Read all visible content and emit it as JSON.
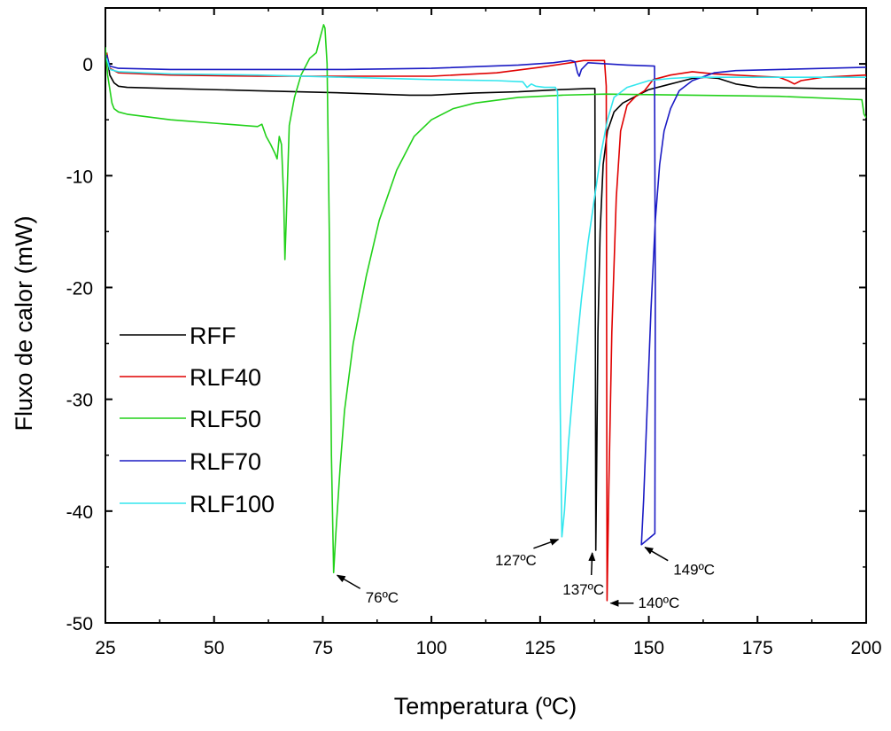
{
  "chart_data": {
    "type": "line",
    "xlabel": "Temperatura (ºC)",
    "ylabel": "Fluxo de calor (mW)",
    "xlim": [
      25,
      200
    ],
    "ylim": [
      -50,
      5
    ],
    "xticks": [
      "25",
      "50",
      "75",
      "100",
      "125",
      "150",
      "175",
      "200"
    ],
    "yticks": [
      "0",
      "-10",
      "-20",
      "-30",
      "-40",
      "-50"
    ],
    "legend_position": "middle-left",
    "grid": false,
    "series": [
      {
        "name": "RFF",
        "color": "#000000",
        "points": [
          [
            25.3,
            1.0
          ],
          [
            26,
            -1.0
          ],
          [
            27,
            -1.7
          ],
          [
            28,
            -2.0
          ],
          [
            30,
            -2.1
          ],
          [
            40,
            -2.2
          ],
          [
            60,
            -2.4
          ],
          [
            80,
            -2.6
          ],
          [
            95,
            -2.8
          ],
          [
            100,
            -2.8
          ],
          [
            110,
            -2.6
          ],
          [
            120,
            -2.5
          ],
          [
            130,
            -2.3
          ],
          [
            136,
            -2.2
          ],
          [
            137.6,
            -2.2
          ],
          [
            137.8,
            -43.5
          ],
          [
            138.0,
            -36
          ],
          [
            138.3,
            -24
          ],
          [
            138.8,
            -15
          ],
          [
            139.5,
            -9
          ],
          [
            140.5,
            -6
          ],
          [
            142,
            -4.3
          ],
          [
            144,
            -3.5
          ],
          [
            147,
            -2.9
          ],
          [
            150,
            -2.3
          ],
          [
            155,
            -1.8
          ],
          [
            160,
            -1.3
          ],
          [
            163,
            -1.2
          ],
          [
            166,
            -1.3
          ],
          [
            170,
            -1.8
          ],
          [
            175,
            -2.1
          ],
          [
            190,
            -2.2
          ],
          [
            200,
            -2.2
          ]
        ]
      },
      {
        "name": "RLF40",
        "color": "#e00000",
        "points": [
          [
            25.3,
            1.0
          ],
          [
            26,
            -0.4
          ],
          [
            28,
            -0.8
          ],
          [
            40,
            -1.0
          ],
          [
            60,
            -1.1
          ],
          [
            80,
            -1.1
          ],
          [
            100,
            -1.1
          ],
          [
            115,
            -0.8
          ],
          [
            125,
            -0.3
          ],
          [
            132,
            0.1
          ],
          [
            135,
            0.3
          ],
          [
            138,
            0.3
          ],
          [
            139.8,
            0.3
          ],
          [
            140.2,
            -2.0
          ],
          [
            140.4,
            -48
          ],
          [
            140.8,
            -38
          ],
          [
            141.5,
            -24
          ],
          [
            142.5,
            -12
          ],
          [
            143.5,
            -6
          ],
          [
            145,
            -3.7
          ],
          [
            147,
            -2.9
          ],
          [
            149,
            -2.4
          ],
          [
            151,
            -1.4
          ],
          [
            155,
            -1.0
          ],
          [
            160,
            -0.7
          ],
          [
            165,
            -0.9
          ],
          [
            175,
            -1.1
          ],
          [
            180,
            -1.2
          ],
          [
            182,
            -1.5
          ],
          [
            183.5,
            -1.8
          ],
          [
            185,
            -1.5
          ],
          [
            190,
            -1.2
          ],
          [
            200,
            -1.0
          ]
        ]
      },
      {
        "name": "RLF50",
        "color": "#22d11a",
        "points": [
          [
            25,
            1.5
          ],
          [
            25.5,
            -1.0
          ],
          [
            26.5,
            -3.5
          ],
          [
            27,
            -4.0
          ],
          [
            28,
            -4.3
          ],
          [
            30,
            -4.5
          ],
          [
            40,
            -5.0
          ],
          [
            50,
            -5.3
          ],
          [
            60,
            -5.6
          ],
          [
            61,
            -5.4
          ],
          [
            62,
            -6.5
          ],
          [
            63,
            -7.2
          ],
          [
            64,
            -8.0
          ],
          [
            64.5,
            -8.5
          ],
          [
            65,
            -6.5
          ],
          [
            65.5,
            -7.2
          ],
          [
            66,
            -12
          ],
          [
            66.3,
            -17.5
          ],
          [
            66.6,
            -14
          ],
          [
            67.3,
            -5.5
          ],
          [
            68.5,
            -3.0
          ],
          [
            70,
            -1.0
          ],
          [
            72,
            0.5
          ],
          [
            73.5,
            1.0
          ],
          [
            74.5,
            2.5
          ],
          [
            75.2,
            3.5
          ],
          [
            75.5,
            3.2
          ],
          [
            76,
            0
          ],
          [
            76.5,
            -15
          ],
          [
            77,
            -35
          ],
          [
            77.5,
            -45.5
          ],
          [
            78,
            -42
          ],
          [
            79,
            -36
          ],
          [
            80,
            -31
          ],
          [
            82,
            -25
          ],
          [
            85,
            -19
          ],
          [
            88,
            -14
          ],
          [
            92,
            -9.5
          ],
          [
            96,
            -6.5
          ],
          [
            100,
            -5.0
          ],
          [
            105,
            -4.0
          ],
          [
            110,
            -3.5
          ],
          [
            120,
            -3.0
          ],
          [
            130,
            -2.8
          ],
          [
            140,
            -2.7
          ],
          [
            160,
            -2.8
          ],
          [
            180,
            -2.9
          ],
          [
            199,
            -3.2
          ],
          [
            199.5,
            -4.5
          ],
          [
            200,
            -4.8
          ]
        ]
      },
      {
        "name": "RLF70",
        "color": "#1b1bc4",
        "points": [
          [
            25.3,
            0.8
          ],
          [
            26,
            -0.2
          ],
          [
            28,
            -0.4
          ],
          [
            40,
            -0.5
          ],
          [
            60,
            -0.5
          ],
          [
            80,
            -0.5
          ],
          [
            100,
            -0.4
          ],
          [
            120,
            -0.1
          ],
          [
            128,
            0.1
          ],
          [
            132,
            0.3
          ],
          [
            133,
            0.2
          ],
          [
            133.6,
            -0.8
          ],
          [
            134,
            -1.1
          ],
          [
            134.5,
            -0.5
          ],
          [
            136,
            0.1
          ],
          [
            145,
            -0.1
          ],
          [
            151.3,
            -0.2
          ],
          [
            151.5,
            -20
          ],
          [
            151.4,
            -42
          ],
          [
            148.3,
            -43
          ],
          [
            148.8,
            -39
          ],
          [
            149.5,
            -32
          ],
          [
            150.5,
            -22
          ],
          [
            151.5,
            -14
          ],
          [
            152.5,
            -9
          ],
          [
            153.5,
            -6
          ],
          [
            155,
            -4.0
          ],
          [
            157,
            -2.4
          ],
          [
            160,
            -1.5
          ],
          [
            165,
            -0.8
          ],
          [
            170,
            -0.6
          ],
          [
            180,
            -0.5
          ],
          [
            200,
            -0.3
          ]
        ]
      },
      {
        "name": "RLF100",
        "color": "#33e6ee",
        "points": [
          [
            25.3,
            0.5
          ],
          [
            26,
            -0.5
          ],
          [
            28,
            -0.7
          ],
          [
            40,
            -0.9
          ],
          [
            60,
            -1.0
          ],
          [
            80,
            -1.2
          ],
          [
            100,
            -1.4
          ],
          [
            115,
            -1.5
          ],
          [
            121,
            -1.6
          ],
          [
            122,
            -2.1
          ],
          [
            123,
            -1.8
          ],
          [
            124,
            -2.0
          ],
          [
            126,
            -2.1
          ],
          [
            128.5,
            -2.1
          ],
          [
            129,
            -2.5
          ],
          [
            129.3,
            -15
          ],
          [
            129.6,
            -30
          ],
          [
            130,
            -42.3
          ],
          [
            130.6,
            -40
          ],
          [
            131.5,
            -34
          ],
          [
            133,
            -27
          ],
          [
            134.5,
            -21
          ],
          [
            136,
            -16
          ],
          [
            137.5,
            -12
          ],
          [
            139,
            -8
          ],
          [
            140.5,
            -5
          ],
          [
            142,
            -3
          ],
          [
            145,
            -2.1
          ],
          [
            150,
            -1.5
          ],
          [
            155,
            -1.3
          ],
          [
            160,
            -1.2
          ],
          [
            170,
            -1.2
          ],
          [
            200,
            -1.2
          ]
        ]
      }
    ],
    "annotations": [
      {
        "label": "76ºC",
        "x": 77.5,
        "y": -45.5,
        "dir": "down-right"
      },
      {
        "label": "127ºC",
        "x": 130.0,
        "y": -42.3,
        "dir": "down-left"
      },
      {
        "label": "137ºC",
        "x": 137.8,
        "y": -43.5,
        "dir": "below"
      },
      {
        "label": "140ºC",
        "x": 140.4,
        "y": -48.0,
        "dir": "right"
      },
      {
        "label": "149ºC",
        "x": 148.3,
        "y": -43.0,
        "dir": "down-right"
      }
    ]
  }
}
